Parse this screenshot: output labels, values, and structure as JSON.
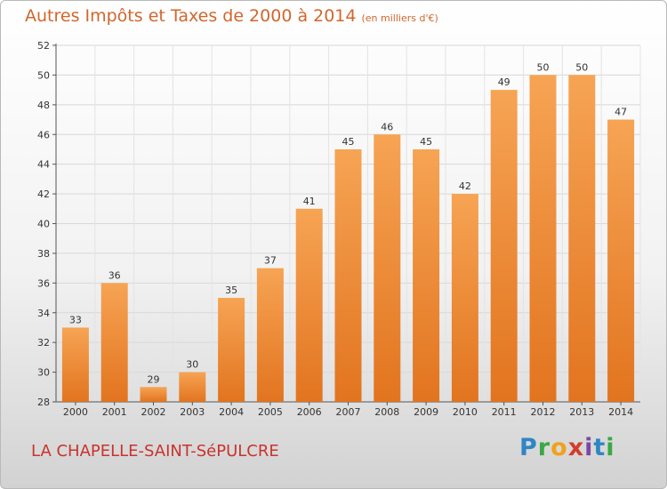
{
  "header": {
    "title": "Autres Impôts et Taxes de 2000 à 2014",
    "unit": "(en milliers d'€)"
  },
  "footer": {
    "place": "LA CHAPELLE-SAINT-SéPULCRE",
    "logo": [
      "P",
      "r",
      "o",
      "x",
      "i",
      "t",
      "i"
    ]
  },
  "colors": {
    "bar": "#f0903a",
    "bar_light": "#f6a454",
    "bar_dark": "#e2741f",
    "title": "#d2662c",
    "place": "#c8332f"
  },
  "chart_data": {
    "type": "bar",
    "title": "Autres Impôts et Taxes de 2000 à 2014",
    "subtitle": "(en milliers d'€)",
    "categories": [
      "2000",
      "2001",
      "2002",
      "2003",
      "2004",
      "2005",
      "2006",
      "2007",
      "2008",
      "2009",
      "2010",
      "2011",
      "2012",
      "2013",
      "2014"
    ],
    "values": [
      33,
      36,
      29,
      30,
      35,
      37,
      41,
      45,
      46,
      45,
      42,
      49,
      50,
      50,
      47
    ],
    "data_labels": [
      "33",
      "36",
      "29",
      "30",
      "35",
      "37",
      "41",
      "45",
      "46",
      "45",
      "42",
      "49",
      "50",
      "50",
      "47"
    ],
    "yticks": [
      28,
      30,
      32,
      34,
      36,
      38,
      40,
      42,
      44,
      46,
      48,
      50,
      52
    ],
    "ytick_labels": [
      "28",
      "30",
      "32",
      "34",
      "36",
      "38",
      "40",
      "42",
      "44",
      "46",
      "48",
      "50",
      "52"
    ],
    "ylim": [
      28,
      52
    ],
    "xlabel": "",
    "ylabel": "",
    "grid": true
  }
}
